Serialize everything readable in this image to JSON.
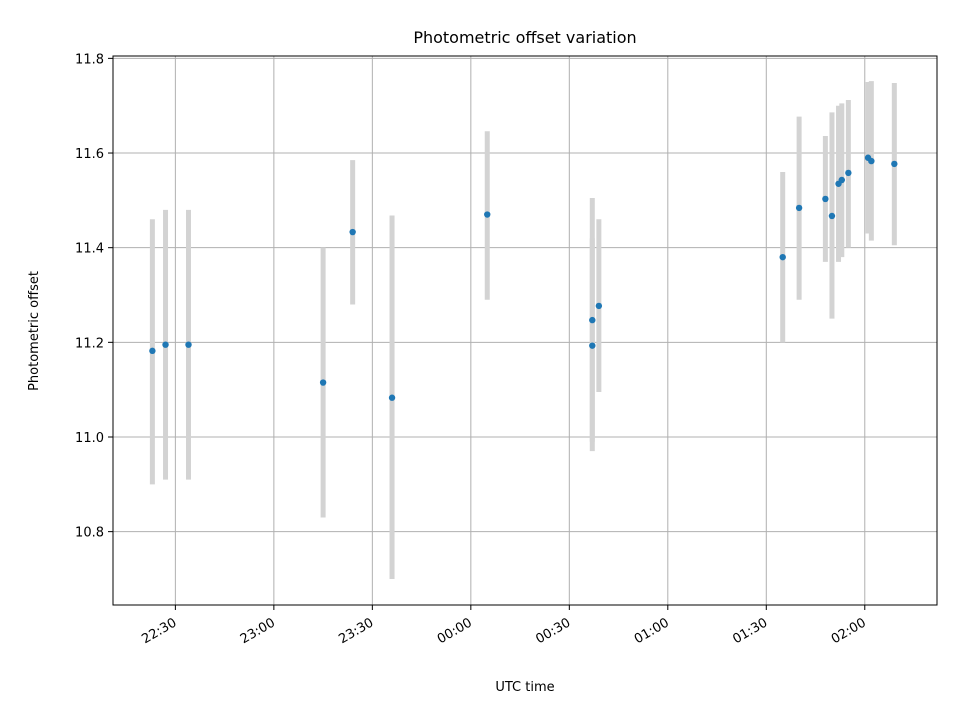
{
  "chart_data": {
    "type": "scatter",
    "title": "Photometric offset variation",
    "xlabel": "UTC time",
    "ylabel": "Photometric offset",
    "x_reference_date_label": "",
    "xlim": [
      "22:11",
      "02:22"
    ],
    "ylim": [
      10.645,
      11.805
    ],
    "x_ticks": [
      "22:30",
      "23:00",
      "23:30",
      "00:00",
      "00:30",
      "01:00",
      "01:30",
      "02:00"
    ],
    "y_ticks": [
      10.8,
      11.0,
      11.2,
      11.4,
      11.6,
      11.8
    ],
    "grid": true,
    "point_color": "#1f77b4",
    "errorbar_color": "#d3d3d3",
    "points": [
      {
        "x": "22:23",
        "y": 11.182,
        "lo": 10.9,
        "hi": 11.46
      },
      {
        "x": "22:27",
        "y": 11.195,
        "lo": 10.91,
        "hi": 11.48
      },
      {
        "x": "22:34",
        "y": 11.195,
        "lo": 10.91,
        "hi": 11.48
      },
      {
        "x": "23:15",
        "y": 11.115,
        "lo": 10.83,
        "hi": 11.4
      },
      {
        "x": "23:24",
        "y": 11.433,
        "lo": 11.28,
        "hi": 11.585
      },
      {
        "x": "23:36",
        "y": 11.083,
        "lo": 10.7,
        "hi": 11.468
      },
      {
        "x": "00:05",
        "y": 11.47,
        "lo": 11.29,
        "hi": 11.646
      },
      {
        "x": "00:37",
        "y": 11.247,
        "lo": 10.99,
        "hi": 11.505
      },
      {
        "x": "00:37",
        "y": 11.193,
        "lo": 10.97,
        "hi": 11.42
      },
      {
        "x": "00:39",
        "y": 11.277,
        "lo": 11.095,
        "hi": 11.46
      },
      {
        "x": "01:35",
        "y": 11.38,
        "lo": 11.2,
        "hi": 11.56
      },
      {
        "x": "01:40",
        "y": 11.484,
        "lo": 11.29,
        "hi": 11.677
      },
      {
        "x": "01:48",
        "y": 11.503,
        "lo": 11.37,
        "hi": 11.636
      },
      {
        "x": "01:50",
        "y": 11.467,
        "lo": 11.25,
        "hi": 11.686
      },
      {
        "x": "01:52",
        "y": 11.535,
        "lo": 11.37,
        "hi": 11.7
      },
      {
        "x": "01:53",
        "y": 11.543,
        "lo": 11.38,
        "hi": 11.705
      },
      {
        "x": "01:55",
        "y": 11.558,
        "lo": 11.4,
        "hi": 11.712
      },
      {
        "x": "02:01",
        "y": 11.59,
        "lo": 11.43,
        "hi": 11.75
      },
      {
        "x": "02:02",
        "y": 11.583,
        "lo": 11.415,
        "hi": 11.752
      },
      {
        "x": "02:09",
        "y": 11.577,
        "lo": 11.405,
        "hi": 11.748
      }
    ]
  }
}
